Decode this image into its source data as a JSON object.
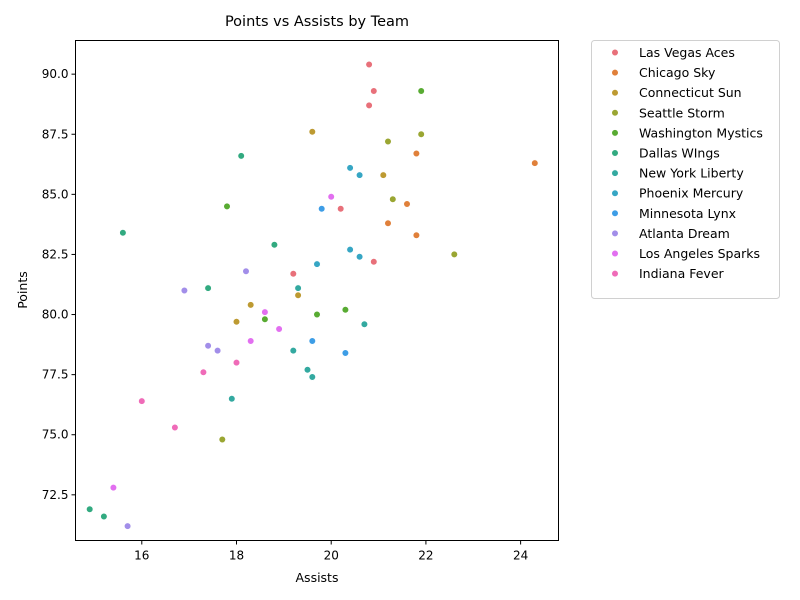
{
  "chart_data": {
    "type": "scatter",
    "title": "Points vs Assists by Team",
    "xlabel": "Assists",
    "ylabel": "Points",
    "xlim": [
      14.6,
      24.8
    ],
    "ylim": [
      70.6,
      91.4
    ],
    "xticks": [
      "16",
      "18",
      "20",
      "22",
      "24"
    ],
    "yticks": [
      "72.5",
      "75.0",
      "77.5",
      "80.0",
      "82.5",
      "85.0",
      "87.5",
      "90.0"
    ],
    "grid": false,
    "legend_position": "outside-right",
    "series": [
      {
        "name": "Las Vegas Aces",
        "color": "#e8707a",
        "points": [
          [
            20.8,
            90.4
          ],
          [
            20.9,
            89.3
          ],
          [
            20.8,
            88.7
          ],
          [
            20.2,
            84.4
          ],
          [
            20.9,
            82.2
          ],
          [
            19.2,
            81.7
          ]
        ]
      },
      {
        "name": "Chicago Sky",
        "color": "#e0803a",
        "points": [
          [
            24.3,
            86.3
          ],
          [
            21.8,
            86.7
          ],
          [
            21.6,
            84.6
          ],
          [
            21.2,
            83.8
          ],
          [
            21.8,
            83.3
          ],
          [
            21.1,
            85.8
          ]
        ]
      },
      {
        "name": "Connecticut Sun",
        "color": "#bd9a32",
        "points": [
          [
            19.6,
            87.6
          ],
          [
            21.1,
            85.8
          ],
          [
            18.3,
            80.4
          ],
          [
            19.3,
            80.8
          ],
          [
            18.0,
            79.7
          ]
        ]
      },
      {
        "name": "Seattle Storm",
        "color": "#9aa632",
        "points": [
          [
            21.2,
            87.2
          ],
          [
            21.9,
            87.5
          ],
          [
            21.3,
            84.8
          ],
          [
            22.6,
            82.5
          ],
          [
            17.7,
            74.8
          ]
        ]
      },
      {
        "name": "Washington Mystics",
        "color": "#58ab32",
        "points": [
          [
            21.9,
            89.3
          ],
          [
            17.8,
            84.5
          ],
          [
            20.3,
            80.2
          ],
          [
            19.7,
            80.0
          ],
          [
            18.6,
            79.8
          ]
        ]
      },
      {
        "name": "Dallas WIngs",
        "color": "#32aa80",
        "points": [
          [
            18.1,
            86.6
          ],
          [
            15.6,
            83.4
          ],
          [
            18.8,
            82.9
          ],
          [
            17.4,
            81.1
          ],
          [
            14.9,
            71.9
          ],
          [
            15.2,
            71.6
          ]
        ]
      },
      {
        "name": "New York Liberty",
        "color": "#33a9a0",
        "points": [
          [
            20.7,
            79.6
          ],
          [
            19.2,
            78.5
          ],
          [
            19.5,
            77.7
          ],
          [
            19.6,
            77.4
          ],
          [
            17.9,
            76.5
          ],
          [
            19.3,
            81.1
          ]
        ]
      },
      {
        "name": "Phoenix Mercury",
        "color": "#36a6c4",
        "points": [
          [
            20.4,
            86.1
          ],
          [
            20.6,
            85.8
          ],
          [
            20.4,
            82.7
          ],
          [
            20.6,
            82.4
          ],
          [
            19.7,
            82.1
          ]
        ]
      },
      {
        "name": "Minnesota Lynx",
        "color": "#3d9de6",
        "points": [
          [
            19.8,
            84.4
          ],
          [
            19.6,
            78.9
          ],
          [
            20.3,
            78.4
          ]
        ]
      },
      {
        "name": "Atlanta Dream",
        "color": "#a28ee9",
        "points": [
          [
            18.2,
            81.8
          ],
          [
            16.9,
            81.0
          ],
          [
            17.4,
            78.7
          ],
          [
            17.6,
            78.5
          ],
          [
            15.7,
            71.2
          ]
        ]
      },
      {
        "name": "Los Angeles Sparks",
        "color": "#e26ff0",
        "points": [
          [
            20.0,
            84.9
          ],
          [
            18.6,
            80.1
          ],
          [
            18.9,
            79.4
          ],
          [
            18.3,
            78.9
          ],
          [
            15.4,
            72.8
          ]
        ]
      },
      {
        "name": "Indiana Fever",
        "color": "#ef6bb8",
        "points": [
          [
            18.0,
            78.0
          ],
          [
            17.3,
            77.6
          ],
          [
            16.0,
            76.4
          ],
          [
            16.7,
            75.3
          ]
        ]
      }
    ]
  }
}
